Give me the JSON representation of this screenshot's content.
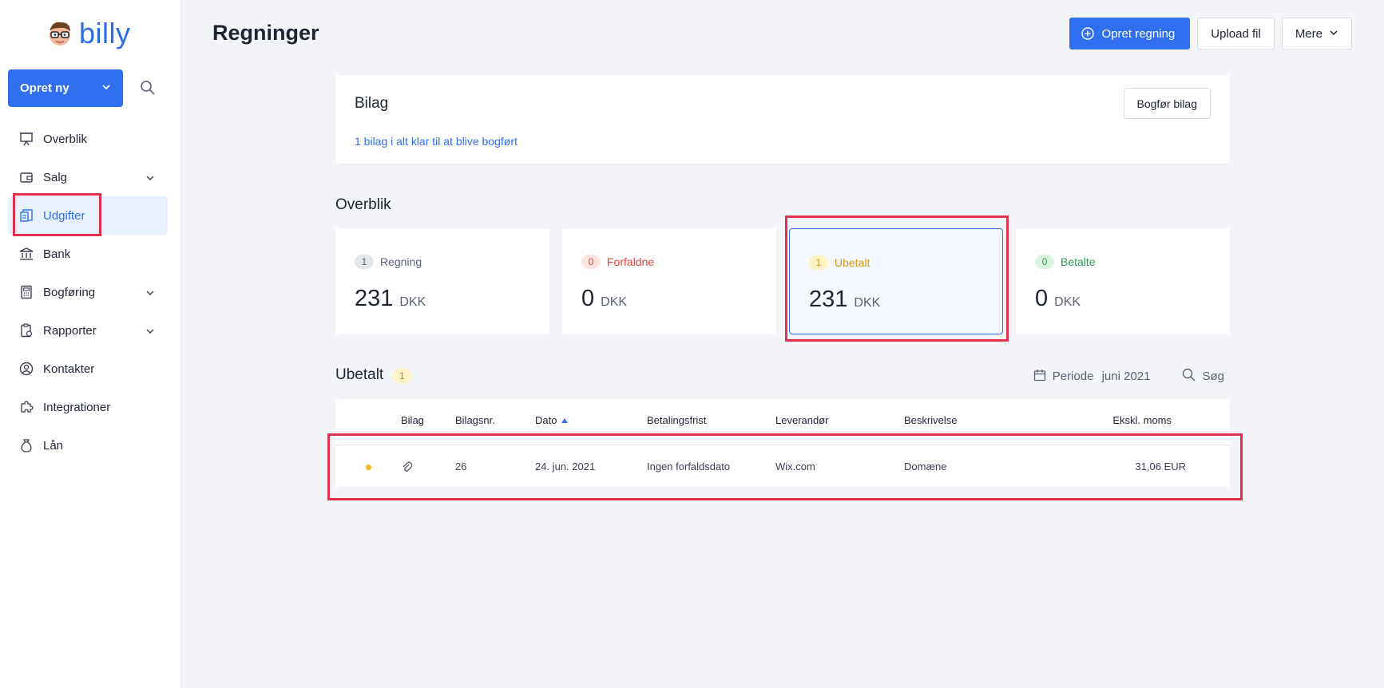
{
  "brand": {
    "name": "billy",
    "color": "#2d6be4"
  },
  "sidebar": {
    "create_button": "Opret ny",
    "search_icon": "search-icon",
    "items": [
      {
        "label": "Overblik",
        "icon": "presentation-icon",
        "expandable": false
      },
      {
        "label": "Salg",
        "icon": "wallet-icon",
        "expandable": true
      },
      {
        "label": "Udgifter",
        "icon": "receipt-icon",
        "expandable": false,
        "active": true
      },
      {
        "label": "Bank",
        "icon": "bank-icon",
        "expandable": false
      },
      {
        "label": "Bogføring",
        "icon": "calculator-icon",
        "expandable": true
      },
      {
        "label": "Rapporter",
        "icon": "report-icon",
        "expandable": true
      },
      {
        "label": "Kontakter",
        "icon": "contact-icon",
        "expandable": false
      },
      {
        "label": "Integrationer",
        "icon": "puzzle-icon",
        "expandable": false
      },
      {
        "label": "Lån",
        "icon": "money-bag-icon",
        "expandable": false
      }
    ]
  },
  "header": {
    "title": "Regninger",
    "create_bill": "Opret regning",
    "upload": "Upload fil",
    "more": "Mere"
  },
  "bilag": {
    "title": "Bilag",
    "link": "1 bilag i alt klar til at blive bogført",
    "button": "Bogfør bilag"
  },
  "overview": {
    "title": "Overblik",
    "stats": [
      {
        "count": "1",
        "label": "Regning",
        "value": "231",
        "currency": "DKK",
        "color": "#5b6274",
        "pill_bg": "#e4e6ec"
      },
      {
        "count": "0",
        "label": "Forfaldne",
        "value": "0",
        "currency": "DKK",
        "color": "#e0443e",
        "pill_bg": "#fde3e1"
      },
      {
        "count": "1",
        "label": "Ubetalt",
        "value": "231",
        "currency": "DKK",
        "color": "#d59b0f",
        "pill_bg": "#fff3c4",
        "selected": true
      },
      {
        "count": "0",
        "label": "Betalte",
        "value": "0",
        "currency": "DKK",
        "color": "#2e9a57",
        "pill_bg": "#dbf3e3"
      }
    ]
  },
  "list": {
    "title": "Ubetalt",
    "count": "1",
    "period_label": "Periode",
    "period_value": "juni 2021",
    "search": "Søg",
    "columns": [
      "Bilag",
      "Bilagsnr.",
      "Dato",
      "Betalingsfrist",
      "Leverandør",
      "Beskrivelse",
      "Ekskl. moms"
    ],
    "rows": [
      {
        "status_color": "#f2b824",
        "attachment_icon": "paperclip-icon",
        "number": "26",
        "date": "24. jun. 2021",
        "due": "Ingen forfaldsdato",
        "vendor": "Wix.com",
        "description": "Domæne",
        "amount": "31,06 EUR"
      }
    ]
  }
}
